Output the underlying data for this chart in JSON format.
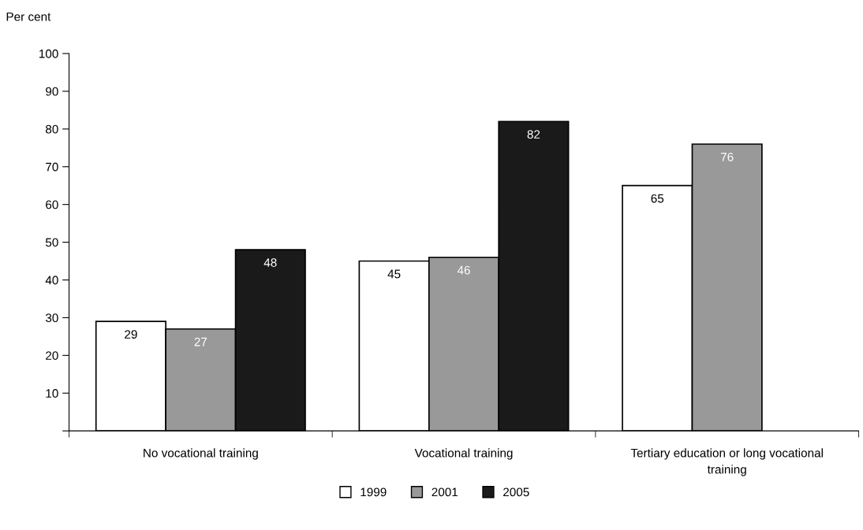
{
  "chart_data": {
    "type": "bar",
    "ylabel": "Per cent",
    "categories": [
      "No vocational training",
      "Vocational training",
      "Tertiary education or long vocational training"
    ],
    "series": [
      {
        "name": "1999",
        "color": "#ffffff",
        "values": [
          29,
          45,
          65
        ]
      },
      {
        "name": "2001",
        "color": "#999999",
        "values": [
          27,
          46,
          76
        ]
      },
      {
        "name": "2005",
        "color": "#1a1a1a",
        "values": [
          48,
          82,
          null
        ]
      }
    ],
    "ylim": [
      0,
      100
    ],
    "yticks": [
      {
        "value": 0,
        "label": null
      },
      10,
      20,
      30,
      40,
      50,
      60,
      70,
      80,
      90,
      100
    ],
    "data_labels": true,
    "grid": false,
    "legend": "bottom"
  }
}
